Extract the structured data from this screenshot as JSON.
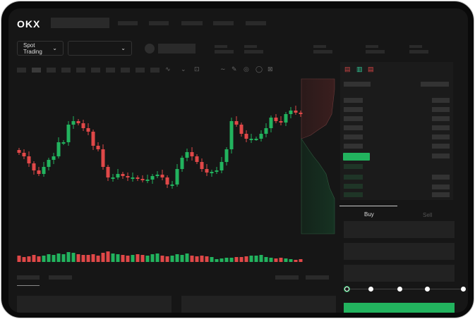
{
  "header": {
    "logo": "OKX"
  },
  "market": {
    "mode_label": "Spot Trading",
    "pair_value": ""
  },
  "trade": {
    "tabs": [
      {
        "label": "Buy",
        "active": true
      },
      {
        "label": "Sell",
        "active": false
      }
    ],
    "slider_percent": 0
  },
  "colors": {
    "up": "#22b35e",
    "down": "#e04848",
    "background": "#161616",
    "accent": "#22b35e"
  },
  "icons": [
    "chevron-down-icon",
    "line-tool-icon",
    "pencil-icon",
    "circle-icon",
    "settings-icon",
    "orderbook-both-icon",
    "orderbook-buy-icon",
    "orderbook-sell-icon"
  ],
  "chart_data": {
    "type": "candlestick",
    "closes": [
      95,
      90,
      80,
      70,
      65,
      75,
      85,
      90,
      110,
      110,
      135,
      140,
      137,
      130,
      125,
      105,
      100,
      75,
      60,
      60,
      65,
      62,
      60,
      60,
      58,
      57,
      57,
      62,
      64,
      60,
      50,
      50,
      72,
      88,
      96,
      90,
      82,
      72,
      67,
      68,
      70,
      82,
      100,
      140,
      135,
      122,
      115,
      115,
      115,
      122,
      130,
      145,
      140,
      138,
      150,
      155,
      152,
      150
    ],
    "volumes": [
      12,
      10,
      11,
      13,
      11,
      12,
      14,
      13,
      15,
      14,
      17,
      16,
      14,
      13,
      13,
      14,
      12,
      16,
      18,
      15,
      14,
      13,
      12,
      13,
      14,
      13,
      12,
      14,
      15,
      12,
      11,
      12,
      14,
      13,
      15,
      12,
      11,
      12,
      11,
      10,
      7,
      8,
      9,
      9,
      10,
      10,
      11,
      12,
      12,
      13,
      10,
      9,
      8,
      9,
      8,
      7,
      6,
      7
    ]
  }
}
